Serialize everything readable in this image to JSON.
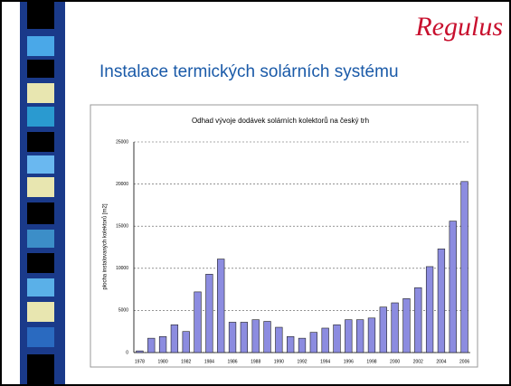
{
  "header": {
    "logo": "Regulus",
    "title": "Instalace termických solárních systému"
  },
  "chart_data": {
    "type": "bar",
    "title": "Odhad vývoje dodávek solárních kolektorů na český trh",
    "y_label": "plocha instalovaných kolektorů [m2]",
    "categories": [
      "1978",
      null,
      "1980",
      null,
      "1982",
      null,
      "1984",
      null,
      "1986",
      null,
      "1988",
      null,
      "1990",
      null,
      "1992",
      null,
      "1994",
      null,
      "1996",
      null,
      "1998",
      null,
      "2000",
      null,
      "2002",
      null,
      "2004",
      null,
      "2006"
    ],
    "values": [
      200,
      1700,
      1900,
      3300,
      2500,
      7200,
      9300,
      11100,
      3600,
      3600,
      3900,
      3700,
      3000,
      1900,
      1700,
      2400,
      2900,
      3300,
      3900,
      3900,
      4100,
      5400,
      5900,
      6400,
      7700,
      10200,
      12300,
      15600,
      20300
    ],
    "color": "#8c8ce0",
    "ylim": [
      0,
      25000
    ],
    "yticks": [
      0,
      5000,
      10000,
      15000,
      20000,
      25000
    ],
    "grid": true
  }
}
